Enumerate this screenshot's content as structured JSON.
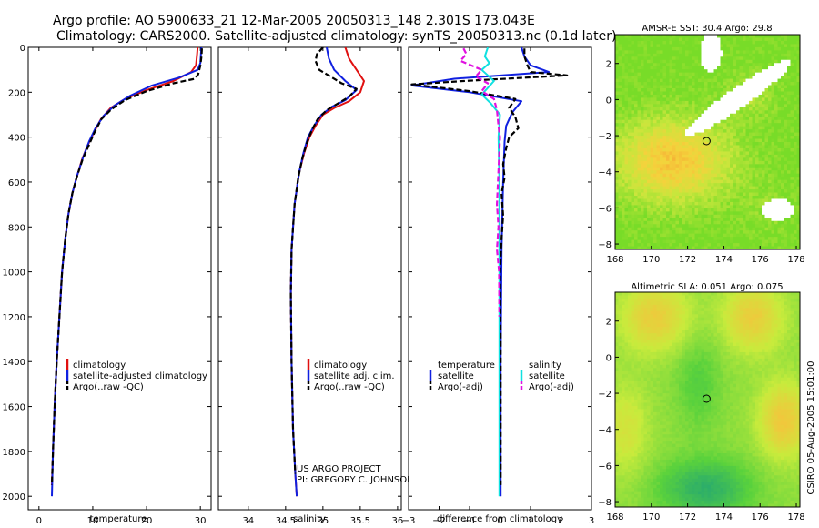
{
  "header": {
    "line1": "Argo profile: AO 5900633_21 12-Mar-2005 20050313_148 2.301S 173.043E",
    "line2": "Climatology: CARS2000. Satellite-adjusted climatology: synTS_20050313.nc (0.1d later)"
  },
  "colors": {
    "climatology": "#e01010",
    "satellite": "#1020e0",
    "argo": "#000000",
    "sal_satellite": "#10e0e0",
    "sal_argo": "#e010e0"
  },
  "chart_data": [
    {
      "type": "line",
      "id": "temperature",
      "xlabel": "temperature",
      "ylabel": "",
      "invert_y": true,
      "xlim": [
        -2,
        32
      ],
      "ylim": [
        2060,
        0
      ],
      "xticks": [
        0,
        10,
        20,
        30
      ],
      "yticks": [
        0,
        200,
        400,
        600,
        800,
        1000,
        1200,
        1400,
        1600,
        1800,
        2000
      ],
      "legend": [
        "climatology",
        "satellite-adjusted climatology",
        "Argo(..raw -QC)"
      ],
      "series": [
        {
          "name": "climatology",
          "color": "#e01010",
          "dash": false,
          "points": [
            [
              29.5,
              0
            ],
            [
              29.4,
              30
            ],
            [
              29.2,
              80
            ],
            [
              28.3,
              110
            ],
            [
              25,
              150
            ],
            [
              20,
              190
            ],
            [
              16,
              230
            ],
            [
              13.3,
              270
            ],
            [
              11.5,
              320
            ],
            [
              10.2,
              380
            ],
            [
              9,
              440
            ],
            [
              8,
              500
            ],
            [
              7,
              580
            ],
            [
              6.2,
              650
            ],
            [
              5.5,
              740
            ],
            [
              4.9,
              850
            ],
            [
              4.3,
              1000
            ],
            [
              3.8,
              1200
            ],
            [
              3.3,
              1400
            ],
            [
              2.9,
              1600
            ],
            [
              2.6,
              1800
            ],
            [
              2.4,
              1950
            ]
          ]
        },
        {
          "name": "satellite-adjusted climatology",
          "color": "#1020e0",
          "dash": false,
          "points": [
            [
              30.2,
              0
            ],
            [
              30.1,
              30
            ],
            [
              30,
              70
            ],
            [
              29.5,
              100
            ],
            [
              26,
              135
            ],
            [
              21,
              170
            ],
            [
              17,
              215
            ],
            [
              14,
              260
            ],
            [
              12,
              305
            ],
            [
              10.5,
              360
            ],
            [
              9.3,
              420
            ],
            [
              8.2,
              490
            ],
            [
              7.1,
              570
            ],
            [
              6.2,
              650
            ],
            [
              5.5,
              740
            ],
            [
              4.9,
              850
            ],
            [
              4.3,
              1000
            ],
            [
              3.8,
              1200
            ],
            [
              3.3,
              1400
            ],
            [
              2.9,
              1600
            ],
            [
              2.6,
              1800
            ],
            [
              2.4,
              2000
            ]
          ]
        },
        {
          "name": "Argo(..raw -QC)",
          "color": "#000000",
          "dash": true,
          "points": [
            [
              30.3,
              5
            ],
            [
              30.2,
              40
            ],
            [
              30,
              80
            ],
            [
              29.6,
              120
            ],
            [
              29,
              140
            ],
            [
              25,
              160
            ],
            [
              20,
              195
            ],
            [
              16,
              235
            ],
            [
              13.5,
              275
            ],
            [
              11.6,
              320
            ],
            [
              10.3,
              380
            ],
            [
              9.2,
              440
            ],
            [
              8.1,
              500
            ],
            [
              7,
              580
            ],
            [
              6.2,
              650
            ],
            [
              5.5,
              740
            ],
            [
              4.9,
              850
            ],
            [
              4.3,
              1000
            ],
            [
              3.8,
              1200
            ],
            [
              3.3,
              1400
            ],
            [
              2.9,
              1600
            ],
            [
              2.6,
              1800
            ],
            [
              2.4,
              1950
            ]
          ]
        }
      ]
    },
    {
      "type": "line",
      "id": "salinity",
      "xlabel": "salinity",
      "ylabel": "",
      "invert_y": true,
      "xlim": [
        33.6,
        36.05
      ],
      "ylim": [
        2060,
        0
      ],
      "xticks": [
        34,
        34.5,
        35,
        35.5,
        36
      ],
      "legend": [
        "climatology",
        "satellite adj. clim.",
        "Argo(..raw -QC)"
      ],
      "series": [
        {
          "name": "climatology",
          "color": "#e01010",
          "dash": false,
          "points": [
            [
              35.3,
              0
            ],
            [
              35.35,
              50
            ],
            [
              35.45,
              100
            ],
            [
              35.55,
              150
            ],
            [
              35.5,
              200
            ],
            [
              35.35,
              240
            ],
            [
              35.15,
              270
            ],
            [
              35,
              300
            ],
            [
              34.9,
              350
            ],
            [
              34.82,
              400
            ],
            [
              34.75,
              470
            ],
            [
              34.68,
              560
            ],
            [
              34.62,
              700
            ],
            [
              34.58,
              900
            ],
            [
              34.57,
              1100
            ],
            [
              34.58,
              1400
            ],
            [
              34.6,
              1700
            ],
            [
              34.63,
              1900
            ],
            [
              34.65,
              2000
            ]
          ]
        },
        {
          "name": "satellite adj. clim.",
          "color": "#1020e0",
          "dash": false,
          "points": [
            [
              35.05,
              0
            ],
            [
              35.08,
              50
            ],
            [
              35.15,
              100
            ],
            [
              35.3,
              150
            ],
            [
              35.45,
              190
            ],
            [
              35.3,
              235
            ],
            [
              35.12,
              265
            ],
            [
              34.98,
              300
            ],
            [
              34.88,
              350
            ],
            [
              34.8,
              400
            ],
            [
              34.74,
              470
            ],
            [
              34.68,
              560
            ],
            [
              34.62,
              700
            ],
            [
              34.58,
              900
            ],
            [
              34.57,
              1100
            ],
            [
              34.58,
              1400
            ],
            [
              34.6,
              1700
            ],
            [
              34.63,
              1900
            ],
            [
              34.65,
              2000
            ]
          ]
        },
        {
          "name": "Argo(..raw -QC)",
          "color": "#000000",
          "dash": true,
          "points": [
            [
              35,
              0
            ],
            [
              34.92,
              30
            ],
            [
              34.9,
              60
            ],
            [
              34.95,
              100
            ],
            [
              35.1,
              130
            ],
            [
              35.25,
              160
            ],
            [
              35.45,
              185
            ],
            [
              35.35,
              220
            ],
            [
              35.2,
              250
            ],
            [
              35.05,
              280
            ],
            [
              34.93,
              320
            ],
            [
              34.85,
              370
            ],
            [
              34.78,
              430
            ],
            [
              34.72,
              500
            ],
            [
              34.67,
              580
            ],
            [
              34.62,
              700
            ],
            [
              34.58,
              900
            ],
            [
              34.57,
              1100
            ],
            [
              34.58,
              1400
            ],
            [
              34.6,
              1700
            ],
            [
              34.63,
              1900
            ]
          ]
        }
      ],
      "annotation": [
        "US ARGO PROJECT",
        "PI: GREGORY C. JOHNSON"
      ]
    },
    {
      "type": "line",
      "id": "difference",
      "xlabel": "difference from climatology",
      "ylabel": "",
      "invert_y": true,
      "xlim": [
        -3,
        3
      ],
      "ylim": [
        2060,
        0
      ],
      "xticks": [
        -3,
        -2,
        -1,
        0,
        1,
        2,
        3
      ],
      "legend_left_title": "temperature",
      "legend_right_title": "salinity",
      "legend_left": [
        "satellite",
        "Argo(-adj)"
      ],
      "legend_right": [
        "satellite",
        "Argo(-adj)"
      ],
      "series": [
        {
          "name": "temperature satellite",
          "color": "#1020e0",
          "dash": false,
          "points": [
            [
              0.7,
              0
            ],
            [
              0.8,
              40
            ],
            [
              1,
              80
            ],
            [
              1.6,
              110
            ],
            [
              -1.5,
              140
            ],
            [
              -2.9,
              170
            ],
            [
              -1,
              200
            ],
            [
              0.7,
              240
            ],
            [
              0.4,
              290
            ],
            [
              0.2,
              350
            ],
            [
              0.15,
              420
            ],
            [
              0.1,
              600
            ],
            [
              0.05,
              900
            ],
            [
              0.02,
              1400
            ],
            [
              0.02,
              2000
            ]
          ]
        },
        {
          "name": "temperature Argo(-adj)",
          "color": "#000000",
          "dash": true,
          "points": [
            [
              0.8,
              5
            ],
            [
              0.8,
              40
            ],
            [
              0.9,
              80
            ],
            [
              1,
              110
            ],
            [
              2.2,
              125
            ],
            [
              -1.2,
              150
            ],
            [
              -2.9,
              165
            ],
            [
              -1,
              195
            ],
            [
              0.5,
              230
            ],
            [
              0.3,
              270
            ],
            [
              0.5,
              310
            ],
            [
              0.6,
              360
            ],
            [
              0.3,
              400
            ],
            [
              0.2,
              450
            ],
            [
              0.1,
              520
            ],
            [
              0.15,
              580
            ],
            [
              0.05,
              650
            ],
            [
              0.1,
              750
            ],
            [
              0.05,
              850
            ],
            [
              0,
              1000
            ],
            [
              0.02,
              1300
            ],
            [
              0.02,
              1600
            ],
            [
              0.02,
              1950
            ]
          ]
        },
        {
          "name": "salinity satellite",
          "color": "#10e0e0",
          "dash": false,
          "points": [
            [
              -0.4,
              0
            ],
            [
              -0.5,
              40
            ],
            [
              -0.35,
              70
            ],
            [
              -0.6,
              100
            ],
            [
              -0.2,
              150
            ],
            [
              -0.4,
              180
            ],
            [
              -0.6,
              210
            ],
            [
              -0.3,
              250
            ],
            [
              0,
              300
            ],
            [
              -0.05,
              400
            ],
            [
              -0.02,
              600
            ],
            [
              -0.02,
              1000
            ],
            [
              -0.02,
              1400
            ],
            [
              -0.02,
              2000
            ]
          ]
        },
        {
          "name": "salinity Argo(-adj)",
          "color": "#e010e0",
          "dash": true,
          "points": [
            [
              -1.2,
              5
            ],
            [
              -1.1,
              30
            ],
            [
              -1.3,
              60
            ],
            [
              -0.6,
              100
            ],
            [
              -0.8,
              130
            ],
            [
              -0.4,
              160
            ],
            [
              -0.6,
              195
            ],
            [
              -0.2,
              230
            ],
            [
              -0.1,
              280
            ],
            [
              -0.05,
              350
            ],
            [
              0,
              400
            ],
            [
              -0.05,
              550
            ],
            [
              -0.1,
              700
            ],
            [
              -0.05,
              800
            ],
            [
              -0.1,
              900
            ],
            [
              -0.03,
              1000
            ],
            [
              -0.02,
              1200
            ]
          ]
        }
      ]
    },
    {
      "type": "heatmap",
      "id": "sst_map",
      "title": "AMSR-E SST: 30.4 Argo: 29.8",
      "xlim": [
        168,
        178.2
      ],
      "ylim": [
        -8.3,
        3.6
      ],
      "xticks": [
        168,
        170,
        172,
        174,
        176,
        178
      ],
      "yticks": [
        2,
        0,
        -2,
        -4,
        -6,
        -8
      ],
      "marker": [
        173.043,
        -2.301
      ]
    },
    {
      "type": "heatmap",
      "id": "sla_map",
      "title": "Altimetric SLA: 0.051 Argo: 0.075",
      "xlim": [
        168,
        178.2
      ],
      "ylim": [
        -8.3,
        3.6
      ],
      "xticks": [
        168,
        170,
        172,
        174,
        176,
        178
      ],
      "yticks": [
        2,
        0,
        -2,
        -4,
        -6,
        -8
      ],
      "marker": [
        173.043,
        -2.301
      ]
    }
  ],
  "footer": {
    "credit": "CSIRO 05-Aug-2005 15:01:00"
  }
}
